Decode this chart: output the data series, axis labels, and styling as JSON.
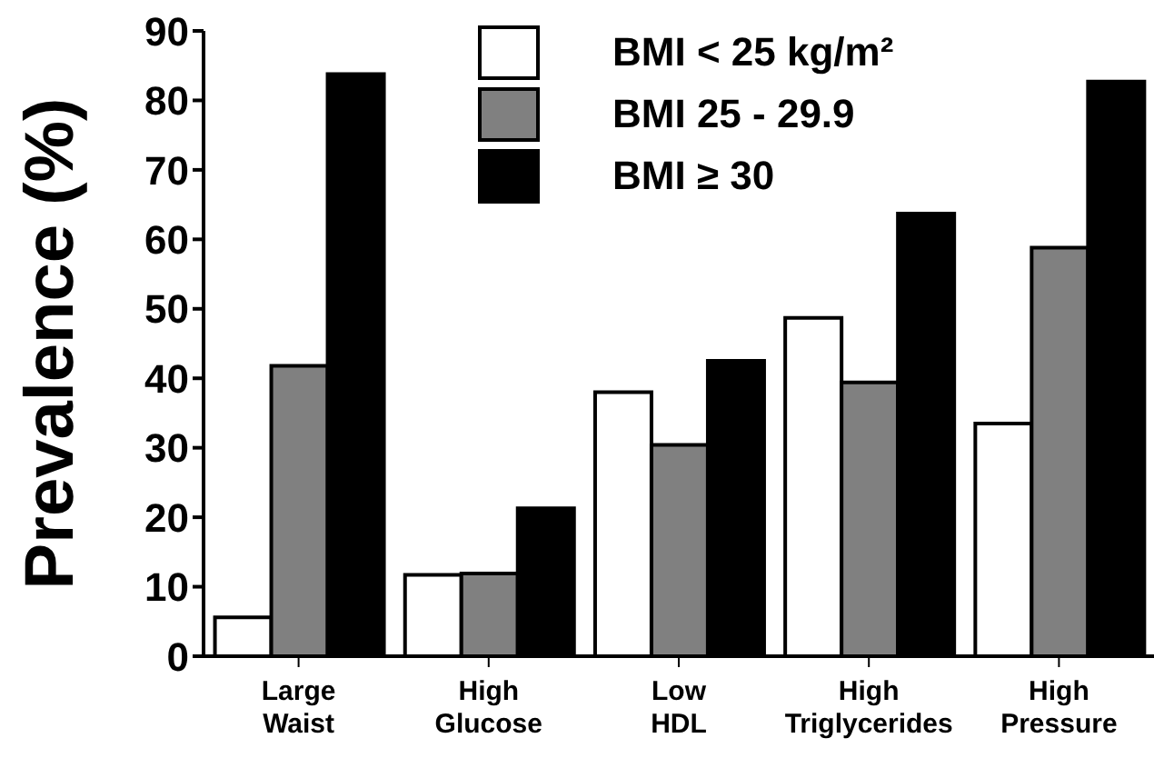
{
  "chart_data": {
    "type": "bar",
    "ylabel": "Prevalence  (%)",
    "categories": [
      "Large Waist",
      "High Glucose",
      "Low HDL",
      "High Triglycerides",
      "High Pressure"
    ],
    "series": [
      {
        "name": "BMI < 25 kg/m²",
        "color": "#ffffff",
        "values": [
          5.6,
          11.7,
          38.0,
          48.7,
          33.5
        ]
      },
      {
        "name": "BMI 25 - 29.9",
        "color": "#808080",
        "values": [
          41.8,
          11.9,
          30.4,
          39.4,
          58.8
        ]
      },
      {
        "name": "BMI ≥ 30",
        "color": "#000000",
        "values": [
          83.8,
          21.3,
          42.5,
          63.7,
          82.7
        ]
      }
    ],
    "ylim": [
      0,
      90
    ],
    "yticks": [
      0,
      10,
      20,
      30,
      40,
      50,
      60,
      70,
      80,
      90
    ],
    "grid": false,
    "legend": "top"
  }
}
